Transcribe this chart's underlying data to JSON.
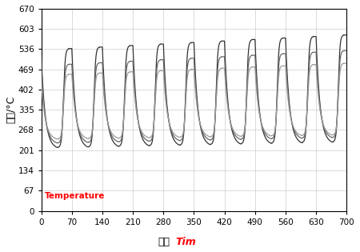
{
  "title": "",
  "ylabel": "温度/°C",
  "xlabel_chinese": "时间",
  "xlabel_english": "Tim",
  "temperature_label": "Temperature",
  "xlim": [
    0,
    700
  ],
  "ylim": [
    0,
    670
  ],
  "xticks": [
    0,
    70,
    140,
    210,
    280,
    350,
    420,
    490,
    560,
    630,
    700
  ],
  "yticks": [
    0,
    67,
    134,
    201,
    268,
    335,
    402,
    469,
    536,
    603,
    670
  ],
  "line_colors": [
    "#333333",
    "#666666",
    "#999999"
  ],
  "background": "#ffffff",
  "grid_color": "#cccccc",
  "cycle_period": 70,
  "num_cycles": 10,
  "curves": [
    {
      "start_val": 510,
      "peak_base": 538,
      "low_base": 210,
      "peak_inc": 5,
      "low_inc": 2
    },
    {
      "start_val": 460,
      "peak_base": 486,
      "low_base": 225,
      "peak_inc": 5,
      "low_inc": 2
    },
    {
      "start_val": 430,
      "peak_base": 453,
      "low_base": 238,
      "peak_inc": 4,
      "low_inc": 1.5
    }
  ]
}
